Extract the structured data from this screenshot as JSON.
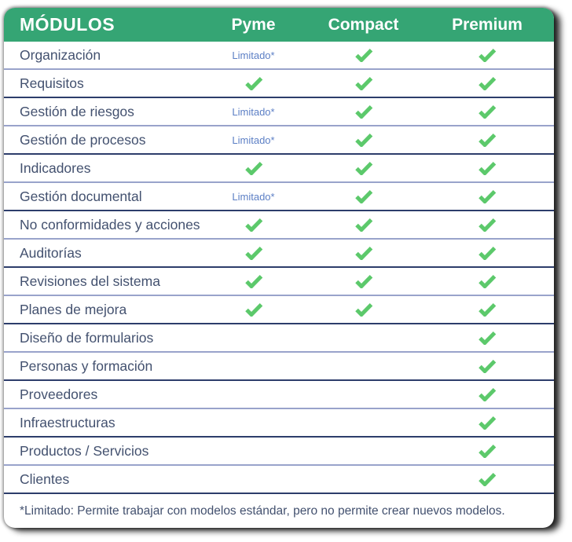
{
  "chart_data": {
    "type": "table",
    "title": "MÓDULOS",
    "plan_columns": [
      "Pyme",
      "Compact",
      "Premium"
    ],
    "limited_label": "Limitado*",
    "cell_values_legend": "check = included, limited = limited availability, none = not included",
    "rows": [
      {
        "module": "Organización",
        "cells": [
          "limited",
          "check",
          "check"
        ]
      },
      {
        "module": "Requisitos",
        "cells": [
          "check",
          "check",
          "check"
        ]
      },
      {
        "module": "Gestión de riesgos",
        "cells": [
          "limited",
          "check",
          "check"
        ]
      },
      {
        "module": "Gestión de procesos",
        "cells": [
          "limited",
          "check",
          "check"
        ]
      },
      {
        "module": "Indicadores",
        "cells": [
          "check",
          "check",
          "check"
        ]
      },
      {
        "module": "Gestión documental",
        "cells": [
          "limited",
          "check",
          "check"
        ]
      },
      {
        "module": "No conformidades y acciones",
        "cells": [
          "check",
          "check",
          "check"
        ]
      },
      {
        "module": "Auditorías",
        "cells": [
          "check",
          "check",
          "check"
        ]
      },
      {
        "module": "Revisiones del sistema",
        "cells": [
          "check",
          "check",
          "check"
        ]
      },
      {
        "module": "Planes de mejora",
        "cells": [
          "check",
          "check",
          "check"
        ]
      },
      {
        "module": "Diseño de formularios",
        "cells": [
          "none",
          "none",
          "check"
        ]
      },
      {
        "module": "Personas y formación",
        "cells": [
          "none",
          "none",
          "check"
        ]
      },
      {
        "module": "Proveedores",
        "cells": [
          "none",
          "none",
          "check"
        ]
      },
      {
        "module": "Infraestructuras",
        "cells": [
          "none",
          "none",
          "check"
        ]
      },
      {
        "module": "Productos / Servicios",
        "cells": [
          "none",
          "none",
          "check"
        ]
      },
      {
        "module": "Clientes",
        "cells": [
          "none",
          "none",
          "check"
        ]
      }
    ],
    "footnote": "*Limitado: Permite trabajar con modelos estándar, pero no permite crear nuevos modelos."
  },
  "colors": {
    "header_green": "#35A574",
    "check_green": "#5CC96B",
    "limited_blue": "#5C7FC5",
    "separator_light": "#99A3CB",
    "separator_dark": "#2D3D6B",
    "text_navy": "#43516F"
  }
}
